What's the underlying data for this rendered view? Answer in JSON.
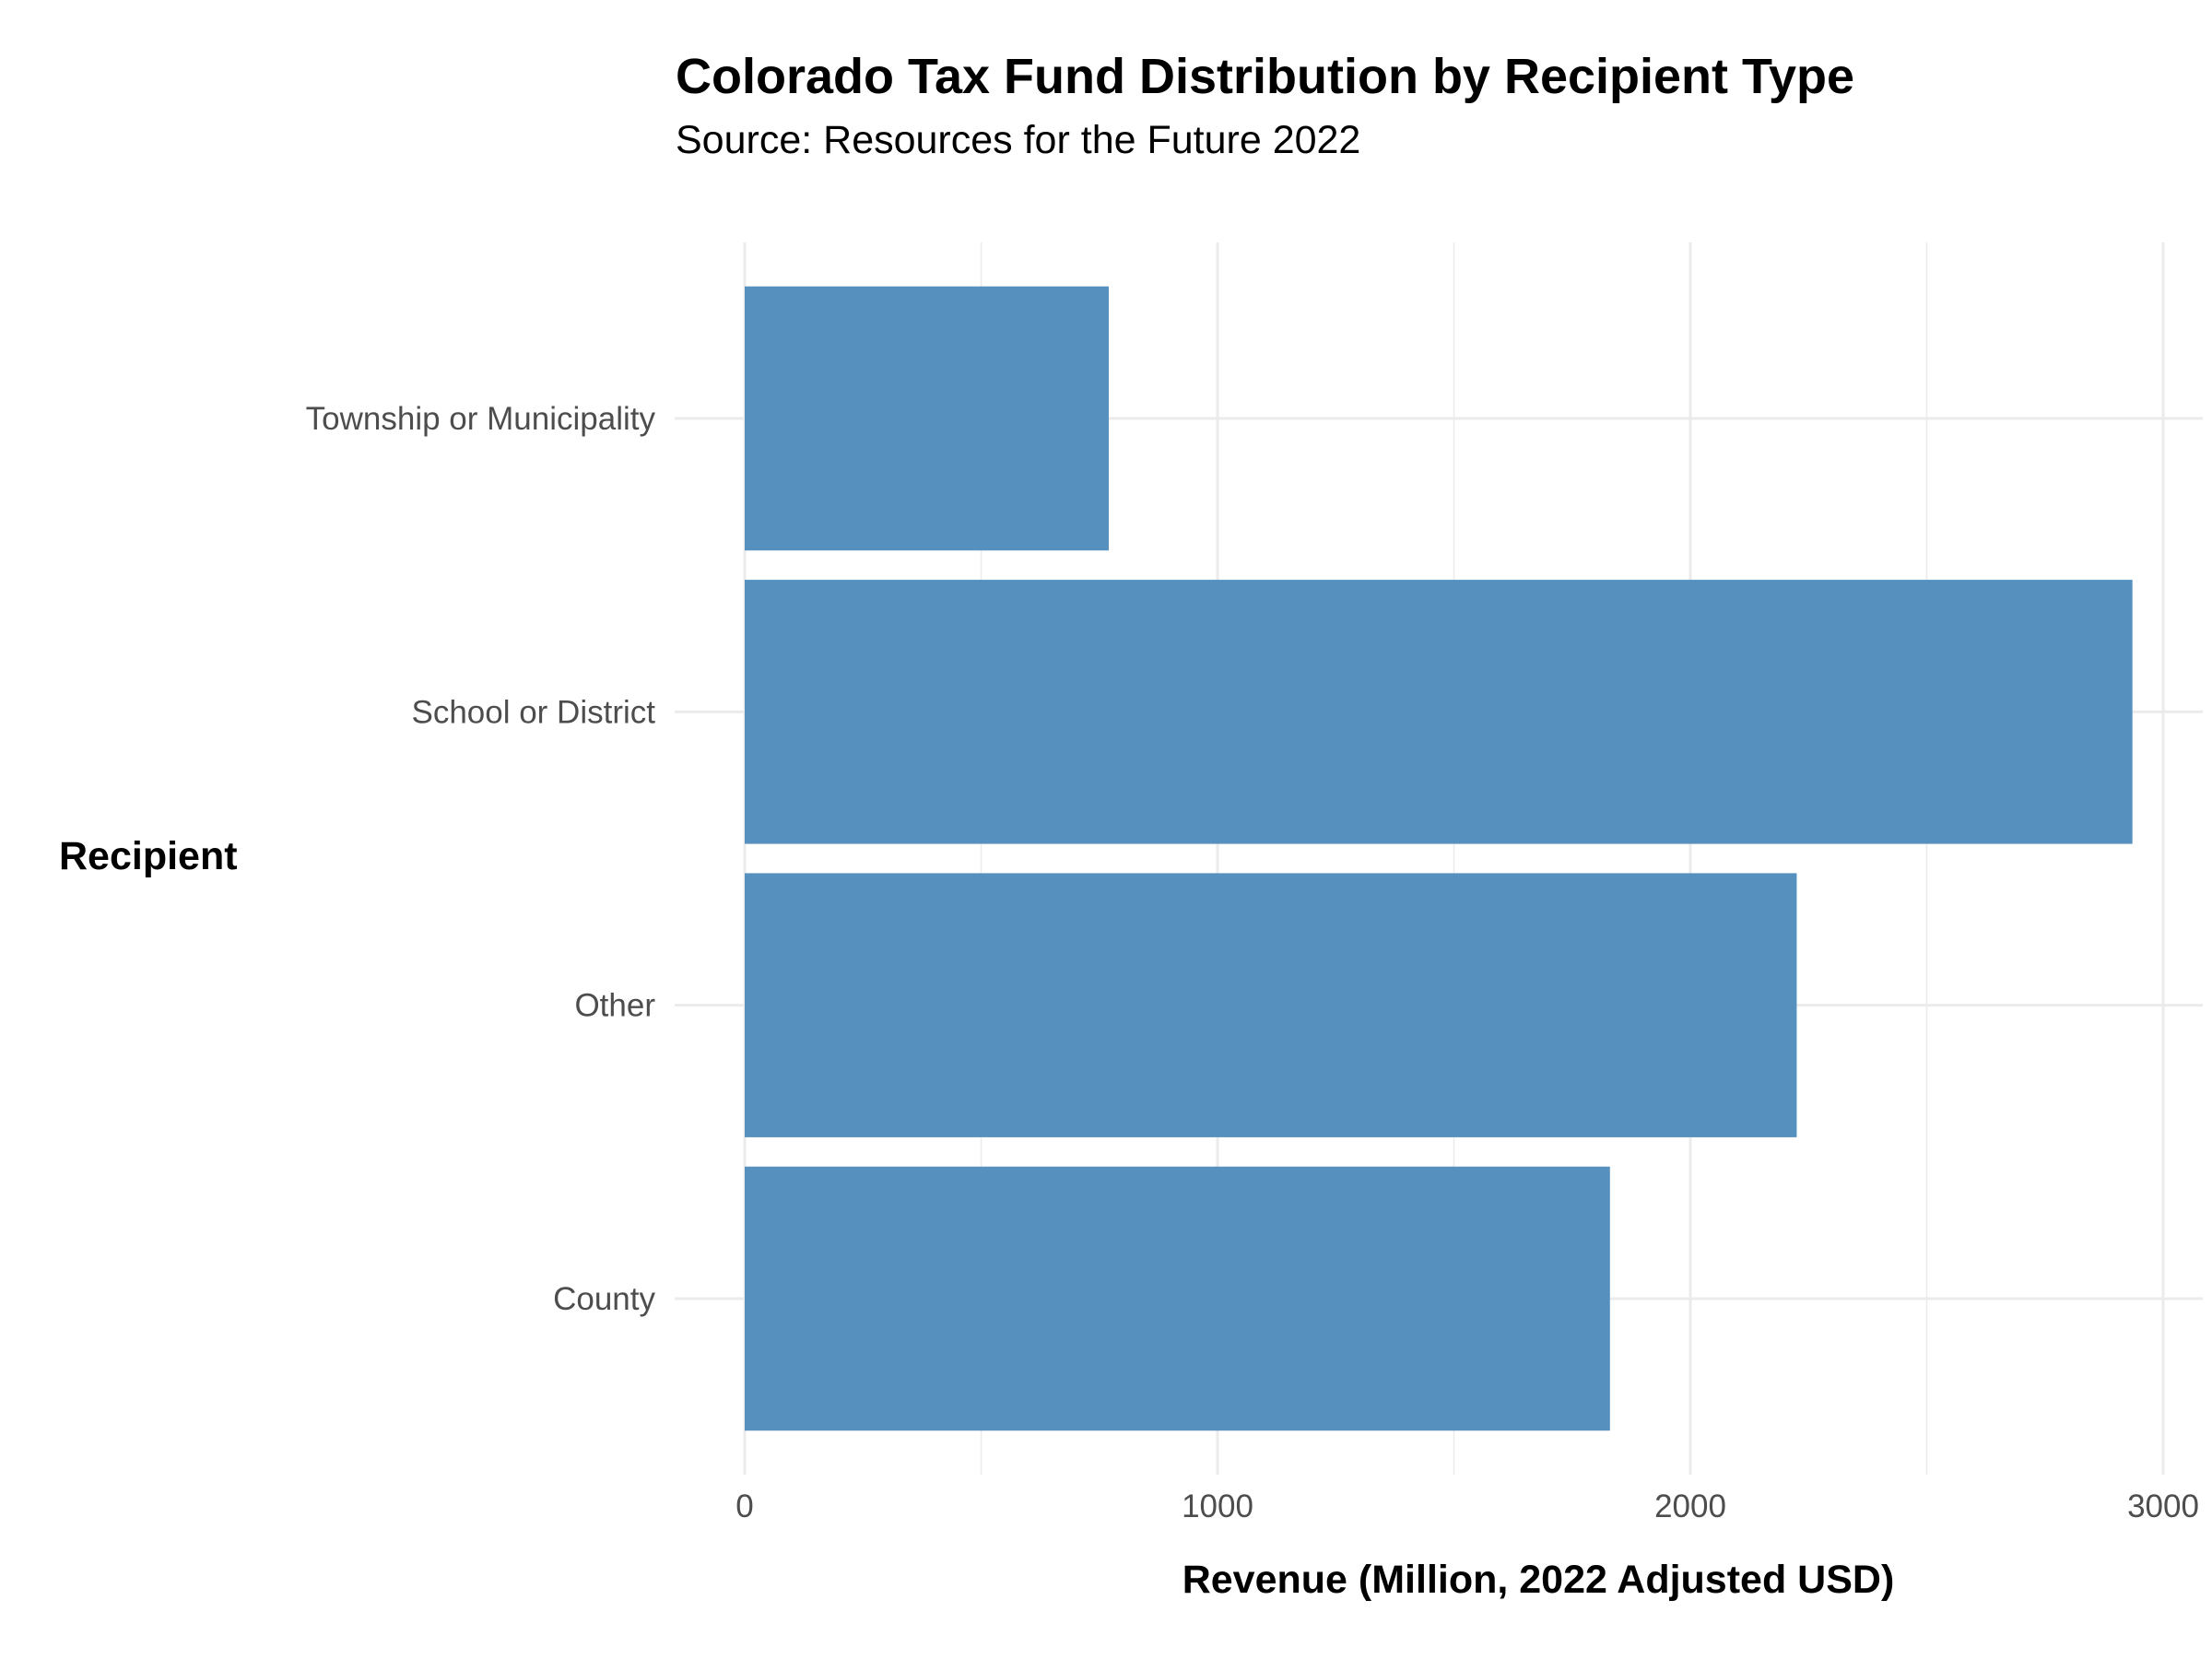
{
  "chart_data": {
    "type": "bar",
    "orientation": "horizontal",
    "title": "Colorado Tax Fund Distribution by Recipient Type",
    "subtitle": "Source: Resources for the Future 2022",
    "xlabel": "Revenue (Million, 2022 Adjusted USD)",
    "ylabel": "Recipient",
    "categories": [
      "County",
      "Other",
      "School or District",
      "Township or Municipality"
    ],
    "values": [
      1830,
      2225,
      2935,
      770
    ],
    "xlim": [
      0,
      3060
    ],
    "x_ticks": [
      0,
      1000,
      2000,
      3000
    ],
    "x_tick_labels": [
      "0",
      "1000",
      "2000",
      "3000"
    ],
    "grid": true,
    "bar_color": "#5690BF",
    "grid_color": "#EBEBEB",
    "legend": "none"
  }
}
